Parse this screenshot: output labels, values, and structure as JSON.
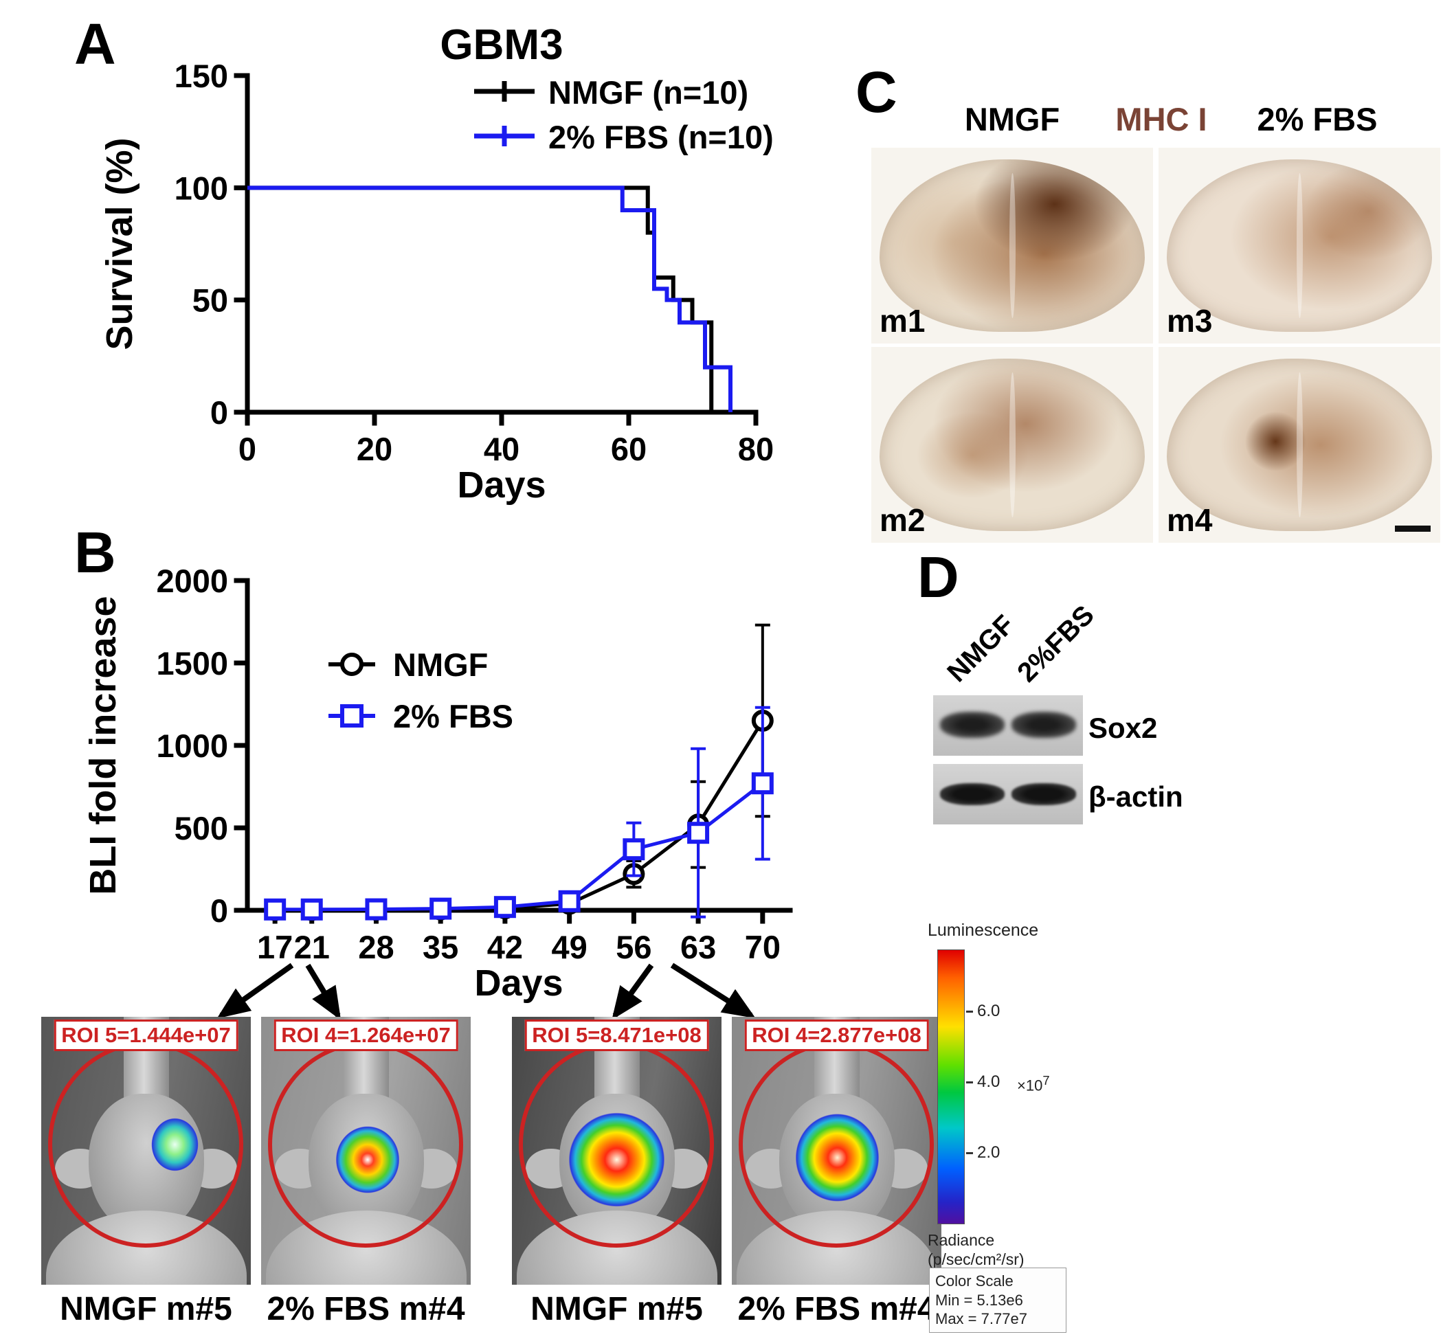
{
  "figure": {
    "panel_a": {
      "label": "A"
    },
    "panel_b": {
      "label": "B"
    },
    "panel_c": {
      "label": "C",
      "header_left": "NMGF",
      "header_center": "MHC I",
      "header_center_color": "#7a4335",
      "header_right": "2% FBS",
      "images": [
        {
          "label": "m1"
        },
        {
          "label": "m3"
        },
        {
          "label": "m2"
        },
        {
          "label": "m4"
        }
      ]
    },
    "panel_d": {
      "label": "D",
      "lane_labels": [
        "NMGF",
        "2%FBS"
      ],
      "band_labels": [
        "Sox2",
        "β-actin"
      ]
    },
    "bli": {
      "roi_color": "#cc2222",
      "images": [
        {
          "roi": "ROI 5=1.444e+07",
          "caption": "NMGF m#5"
        },
        {
          "roi": "ROI 4=1.264e+07",
          "caption": "2% FBS m#4"
        },
        {
          "roi": "ROI 5=8.471e+08",
          "caption": "NMGF m#5"
        },
        {
          "roi": "ROI 4=2.877e+08",
          "caption": "2% FBS m#4"
        }
      ]
    },
    "colorbar": {
      "title": "Luminescence",
      "tick_labels": [
        "6.0",
        "4.0",
        "2.0"
      ],
      "multiplier_base": "×10",
      "multiplier_exp": "7",
      "radiance_label": "Radiance",
      "radiance_units": "(p/sec/cm²/sr)",
      "scale_title": "Color Scale",
      "scale_min": "Min = 5.13e6",
      "scale_max": "Max = 7.77e7"
    }
  },
  "chart_data": [
    {
      "id": "survival",
      "type": "line",
      "subtype": "step-survival",
      "title": "GBM3",
      "xlabel": "Days",
      "ylabel": "Survival (%)",
      "xlim": [
        0,
        80
      ],
      "ylim": [
        0,
        150
      ],
      "xticks": [
        0,
        20,
        40,
        60,
        80
      ],
      "yticks": [
        0,
        50,
        100,
        150
      ],
      "legend_position": "top-right",
      "grid": false,
      "margins": {
        "l": 230,
        "r": 30,
        "t": 80,
        "b": 150
      },
      "ylabel_x": 62,
      "series": [
        {
          "name": "NMGF (n=10)",
          "color": "#000000",
          "step_points": [
            [
              0,
              100
            ],
            [
              63,
              100
            ],
            [
              63,
              80
            ],
            [
              64,
              80
            ],
            [
              64,
              60
            ],
            [
              67,
              60
            ],
            [
              67,
              50
            ],
            [
              70,
              50
            ],
            [
              70,
              40
            ],
            [
              73,
              40
            ],
            [
              73,
              0
            ]
          ]
        },
        {
          "name": "2% FBS (n=10)",
          "color": "#1b1bf0",
          "step_points": [
            [
              0,
              100
            ],
            [
              59,
              100
            ],
            [
              59,
              90
            ],
            [
              64,
              90
            ],
            [
              64,
              55
            ],
            [
              66,
              55
            ],
            [
              66,
              50
            ],
            [
              68,
              50
            ],
            [
              68,
              40
            ],
            [
              72,
              40
            ],
            [
              72,
              20
            ],
            [
              76,
              20
            ],
            [
              76,
              0
            ]
          ]
        }
      ]
    },
    {
      "id": "bli-fold-increase",
      "type": "line",
      "xlabel": "Days",
      "ylabel": "BLI fold increase",
      "x": [
        17,
        21,
        28,
        35,
        42,
        49,
        56,
        63,
        70
      ],
      "xlim": [
        14,
        73
      ],
      "ylim": [
        0,
        2000
      ],
      "yticks": [
        0,
        500,
        1000,
        1500,
        2000
      ],
      "legend_position": "top-left",
      "grid": false,
      "margins": {
        "l": 250,
        "r": 60,
        "t": 50,
        "b": 150
      },
      "ylabel_x": 58,
      "series": [
        {
          "name": "NMGF",
          "color": "#000000",
          "marker": "circle",
          "values": [
            2,
            2,
            3,
            5,
            12,
            40,
            220,
            520,
            1150
          ],
          "errors": [
            2,
            2,
            2,
            4,
            6,
            15,
            80,
            260,
            580
          ]
        },
        {
          "name": "2% FBS",
          "color": "#1b1bf0",
          "marker": "square",
          "values": [
            5,
            5,
            6,
            10,
            20,
            55,
            370,
            470,
            770
          ],
          "errors": [
            3,
            3,
            3,
            6,
            10,
            20,
            160,
            510,
            460
          ]
        }
      ]
    }
  ]
}
